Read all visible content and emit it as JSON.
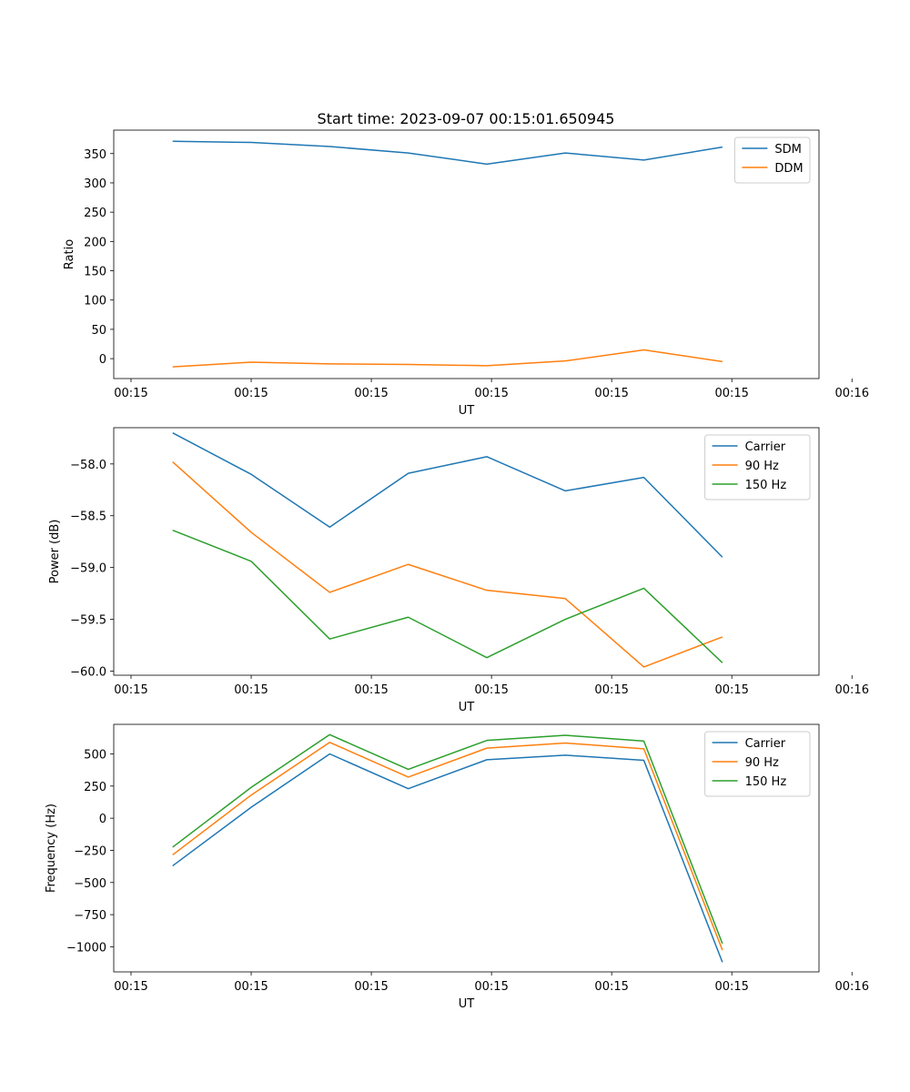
{
  "figure": {
    "title": "Start time: 2023-09-07 00:15:01.650945"
  },
  "colors": {
    "blue": "#1f77b4",
    "orange": "#ff7f0e",
    "green": "#2ca02c"
  },
  "chart_data": [
    {
      "type": "line",
      "title": "Start time: 2023-09-07 00:15:01.650945",
      "xlabel": "UT",
      "ylabel": "Ratio",
      "x": [
        1,
        2,
        3,
        4,
        5,
        6,
        7,
        8
      ],
      "xlim": [
        0.25,
        9.23
      ],
      "xticks": [
        0.47,
        2.0,
        3.53,
        5.06,
        6.59,
        8.12,
        9.65
      ],
      "xticklabels": [
        "00:15",
        "00:15",
        "00:15",
        "00:15",
        "00:15",
        "00:15",
        "00:16"
      ],
      "ylim": [
        -34,
        390
      ],
      "yticks": [
        0,
        50,
        100,
        150,
        200,
        250,
        300,
        350
      ],
      "yticklabels": [
        "0",
        "50",
        "100",
        "150",
        "200",
        "250",
        "300",
        "350"
      ],
      "legend": "top-right",
      "series": [
        {
          "name": "SDM",
          "color": "blue",
          "values": [
            371,
            369,
            362,
            351,
            332,
            351,
            339,
            361
          ]
        },
        {
          "name": "DDM",
          "color": "orange",
          "values": [
            -14,
            -6,
            -9,
            -10,
            -12,
            -4,
            15,
            -5
          ]
        }
      ]
    },
    {
      "type": "line",
      "title": "",
      "xlabel": "UT",
      "ylabel": "Power (dB)",
      "x": [
        1,
        2,
        3,
        4,
        5,
        6,
        7,
        8
      ],
      "xlim": [
        0.25,
        9.23
      ],
      "xticks": [
        0.47,
        2.0,
        3.53,
        5.06,
        6.59,
        8.12,
        9.65
      ],
      "xticklabels": [
        "00:15",
        "00:15",
        "00:15",
        "00:15",
        "00:15",
        "00:15",
        "00:16"
      ],
      "ylim": [
        -60.04,
        -57.65
      ],
      "yticks": [
        -60.0,
        -59.5,
        -59.0,
        -58.5,
        -58.0
      ],
      "yticklabels": [
        "−60.0",
        "−59.5",
        "−59.0",
        "−58.5",
        "−58.0"
      ],
      "legend": "top-right",
      "series": [
        {
          "name": "Carrier",
          "color": "blue",
          "values": [
            -57.7,
            -58.1,
            -58.61,
            -58.09,
            -57.93,
            -58.26,
            -58.13,
            -58.9
          ]
        },
        {
          "name": "90 Hz",
          "color": "orange",
          "values": [
            -57.98,
            -58.66,
            -59.24,
            -58.97,
            -59.22,
            -59.3,
            -59.96,
            -59.67
          ]
        },
        {
          "name": "150 Hz",
          "color": "green",
          "values": [
            -58.64,
            -58.94,
            -59.69,
            -59.48,
            -59.87,
            -59.5,
            -59.2,
            -59.92
          ]
        }
      ]
    },
    {
      "type": "line",
      "title": "",
      "xlabel": "UT",
      "ylabel": "Frequency (Hz)",
      "x": [
        1,
        2,
        3,
        4,
        5,
        6,
        7,
        8
      ],
      "xlim": [
        0.25,
        9.23
      ],
      "xticks": [
        0.47,
        2.0,
        3.53,
        5.06,
        6.59,
        8.12,
        9.65
      ],
      "xticklabels": [
        "00:15",
        "00:15",
        "00:15",
        "00:15",
        "00:15",
        "00:15",
        "00:16"
      ],
      "ylim": [
        -1195,
        730
      ],
      "yticks": [
        -1000,
        -750,
        -500,
        -250,
        0,
        250,
        500
      ],
      "yticklabels": [
        "−1000",
        "−750",
        "−500",
        "−250",
        "0",
        "250",
        "500"
      ],
      "legend": "top-right",
      "series": [
        {
          "name": "Carrier",
          "color": "blue",
          "values": [
            -370,
            85,
            500,
            230,
            455,
            490,
            450,
            -1120
          ]
        },
        {
          "name": "90 Hz",
          "color": "orange",
          "values": [
            -285,
            180,
            590,
            320,
            545,
            585,
            540,
            -1025
          ]
        },
        {
          "name": "150 Hz",
          "color": "green",
          "values": [
            -225,
            240,
            650,
            380,
            605,
            645,
            600,
            -975
          ]
        }
      ]
    }
  ]
}
